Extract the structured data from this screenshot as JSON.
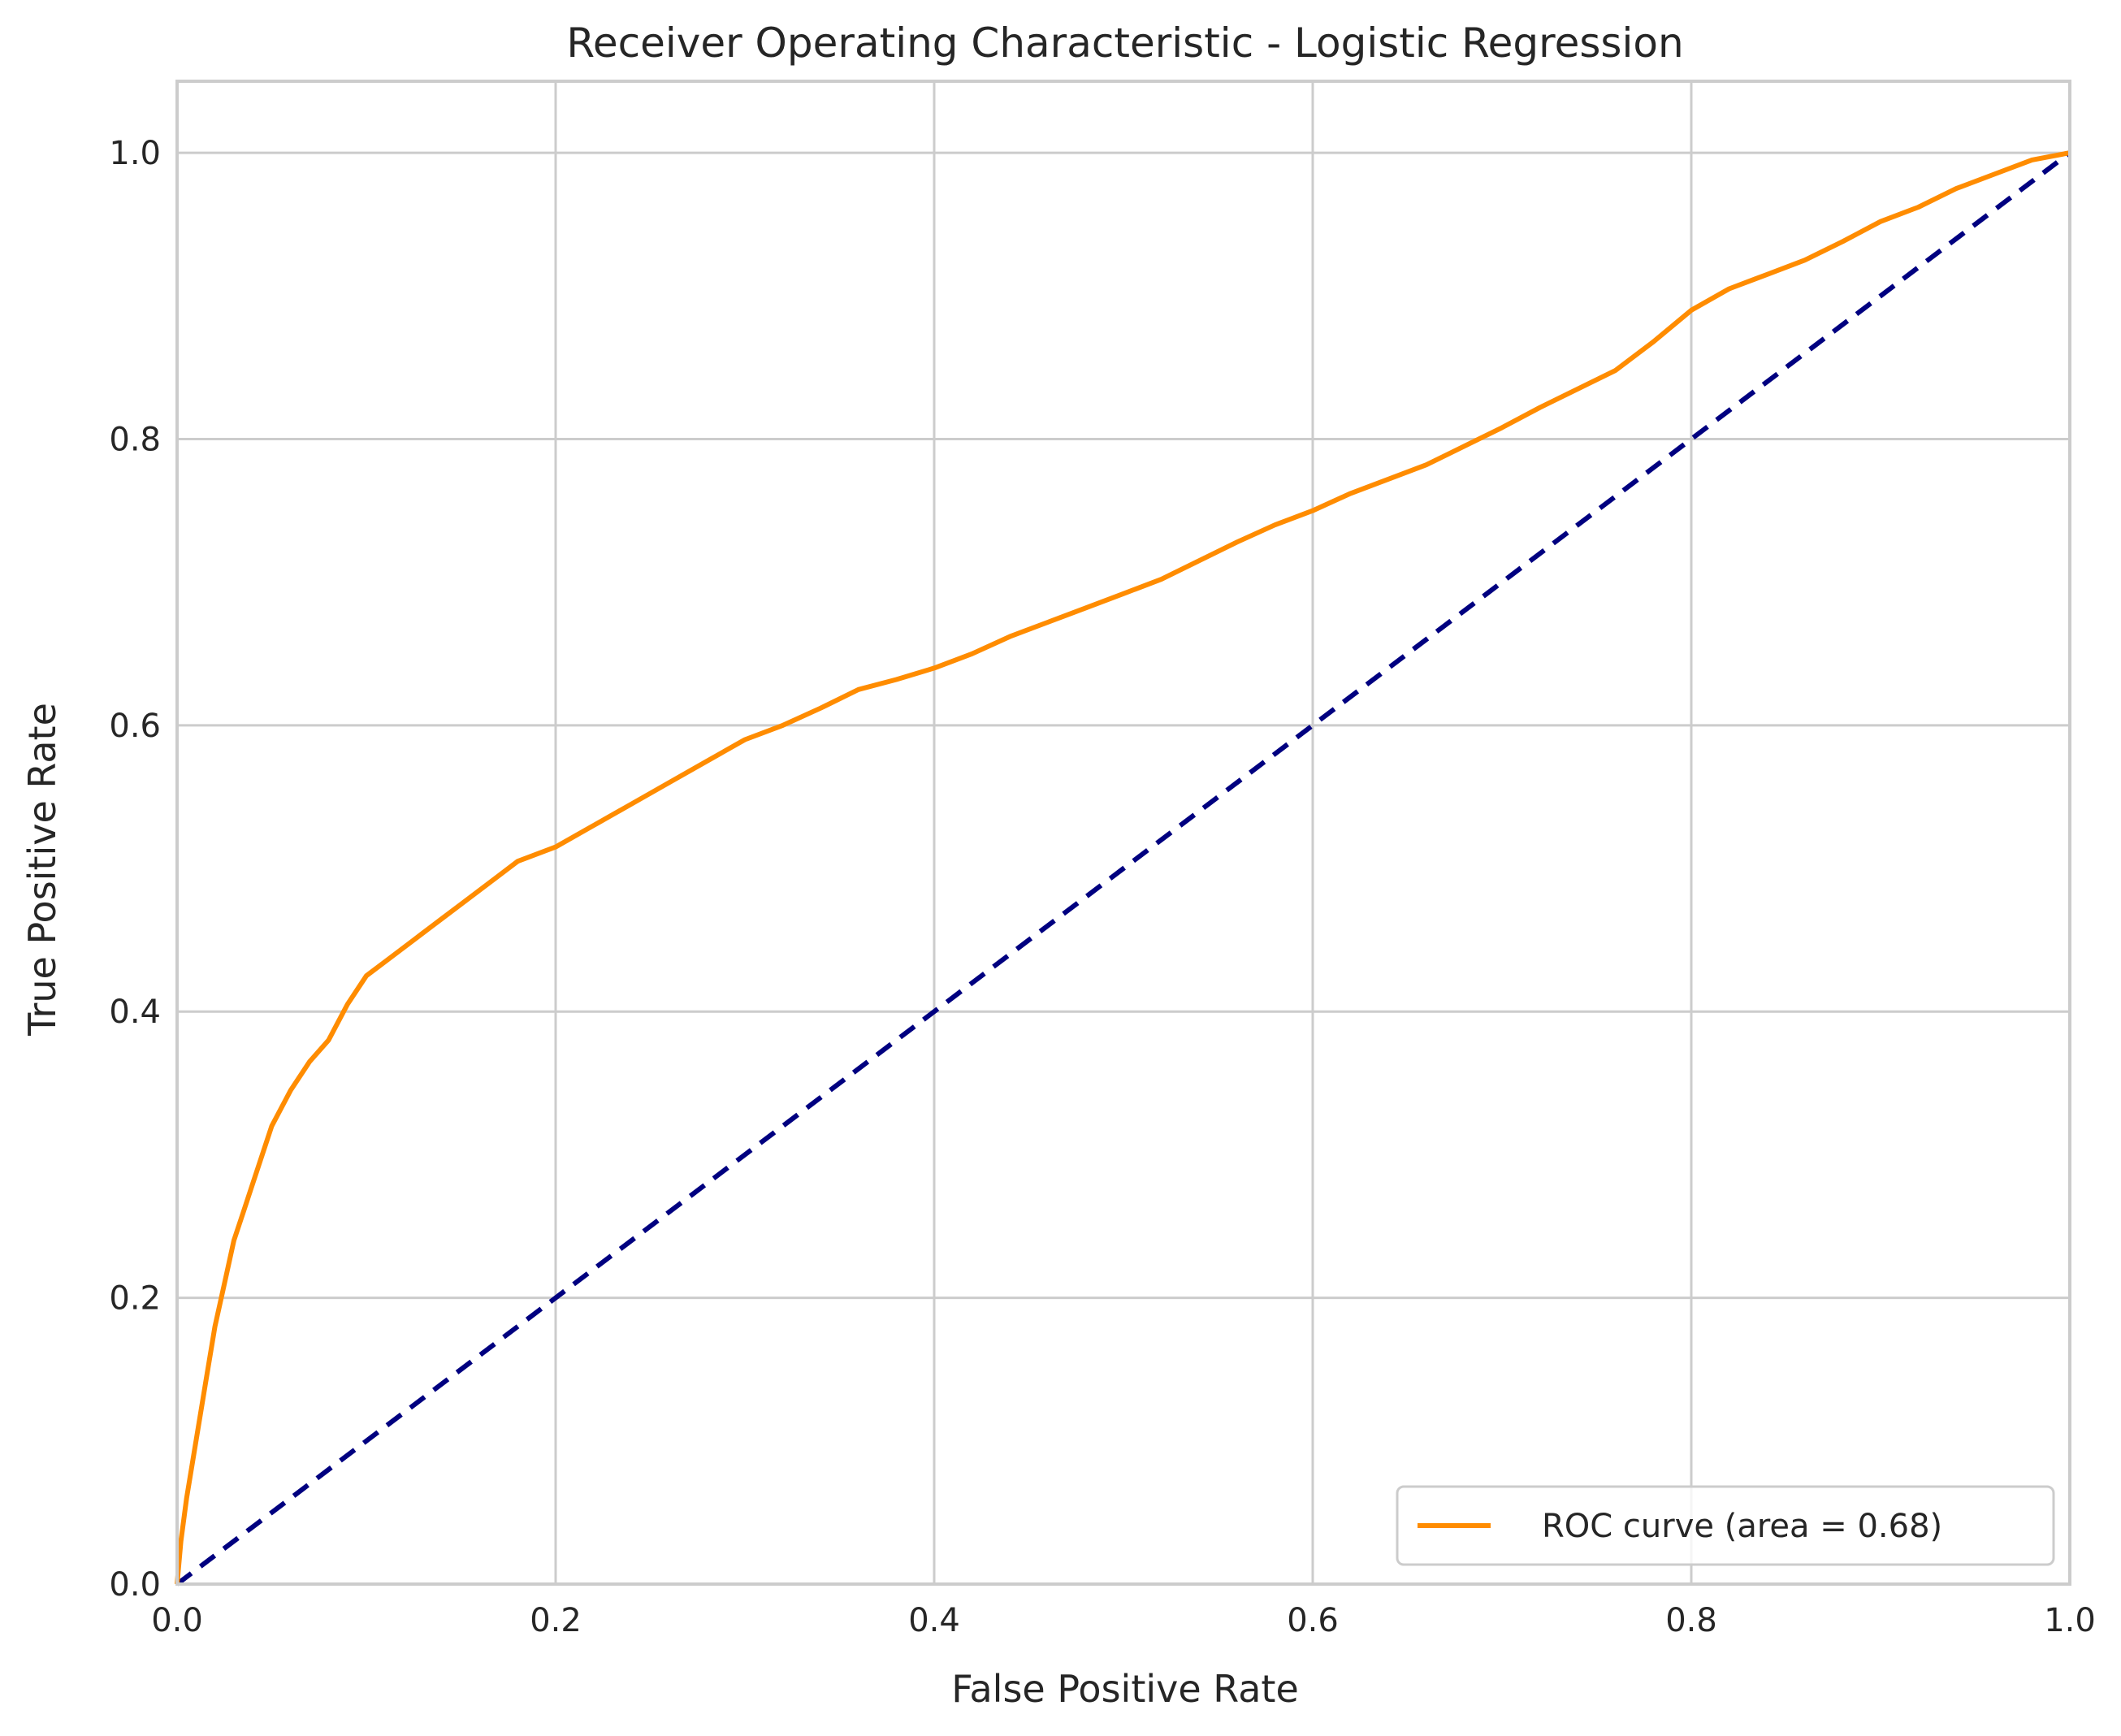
{
  "chart_data": {
    "type": "line",
    "title": "Receiver Operating Characteristic - Logistic Regression",
    "xlabel": "False Positive Rate",
    "ylabel": "True Positive Rate",
    "xlim": [
      0.0,
      1.0
    ],
    "ylim": [
      0.0,
      1.05
    ],
    "x_ticks": [
      "0.0",
      "0.2",
      "0.4",
      "0.6",
      "0.8",
      "1.0"
    ],
    "y_ticks": [
      "0.0",
      "0.2",
      "0.4",
      "0.6",
      "0.8",
      "1.0"
    ],
    "grid": true,
    "legend_position": "lower-right",
    "series": [
      {
        "name": "ROC curve (area = 0.68)",
        "color": "#ff8c00",
        "style": "solid",
        "x": [
          0.0,
          0.002,
          0.005,
          0.01,
          0.015,
          0.02,
          0.025,
          0.03,
          0.035,
          0.04,
          0.05,
          0.06,
          0.07,
          0.08,
          0.09,
          0.1,
          0.11,
          0.12,
          0.13,
          0.14,
          0.15,
          0.16,
          0.17,
          0.18,
          0.2,
          0.22,
          0.24,
          0.26,
          0.28,
          0.3,
          0.32,
          0.34,
          0.36,
          0.38,
          0.4,
          0.42,
          0.44,
          0.46,
          0.48,
          0.5,
          0.52,
          0.54,
          0.56,
          0.58,
          0.6,
          0.62,
          0.64,
          0.66,
          0.68,
          0.7,
          0.72,
          0.74,
          0.76,
          0.78,
          0.8,
          0.82,
          0.84,
          0.86,
          0.88,
          0.9,
          0.92,
          0.94,
          0.96,
          0.98,
          1.0
        ],
        "y": [
          0.0,
          0.03,
          0.06,
          0.1,
          0.14,
          0.18,
          0.21,
          0.24,
          0.26,
          0.28,
          0.32,
          0.345,
          0.365,
          0.38,
          0.405,
          0.425,
          0.435,
          0.445,
          0.455,
          0.465,
          0.475,
          0.485,
          0.495,
          0.505,
          0.515,
          0.53,
          0.545,
          0.56,
          0.575,
          0.59,
          0.6,
          0.612,
          0.625,
          0.632,
          0.64,
          0.65,
          0.662,
          0.672,
          0.682,
          0.692,
          0.702,
          0.715,
          0.728,
          0.74,
          0.75,
          0.762,
          0.772,
          0.782,
          0.795,
          0.808,
          0.822,
          0.835,
          0.848,
          0.868,
          0.89,
          0.905,
          0.915,
          0.925,
          0.938,
          0.952,
          0.962,
          0.975,
          0.985,
          0.995,
          1.0
        ]
      },
      {
        "name": "",
        "color": "#000080",
        "style": "dashed",
        "x": [
          0.0,
          1.0
        ],
        "y": [
          0.0,
          1.0
        ]
      }
    ]
  }
}
